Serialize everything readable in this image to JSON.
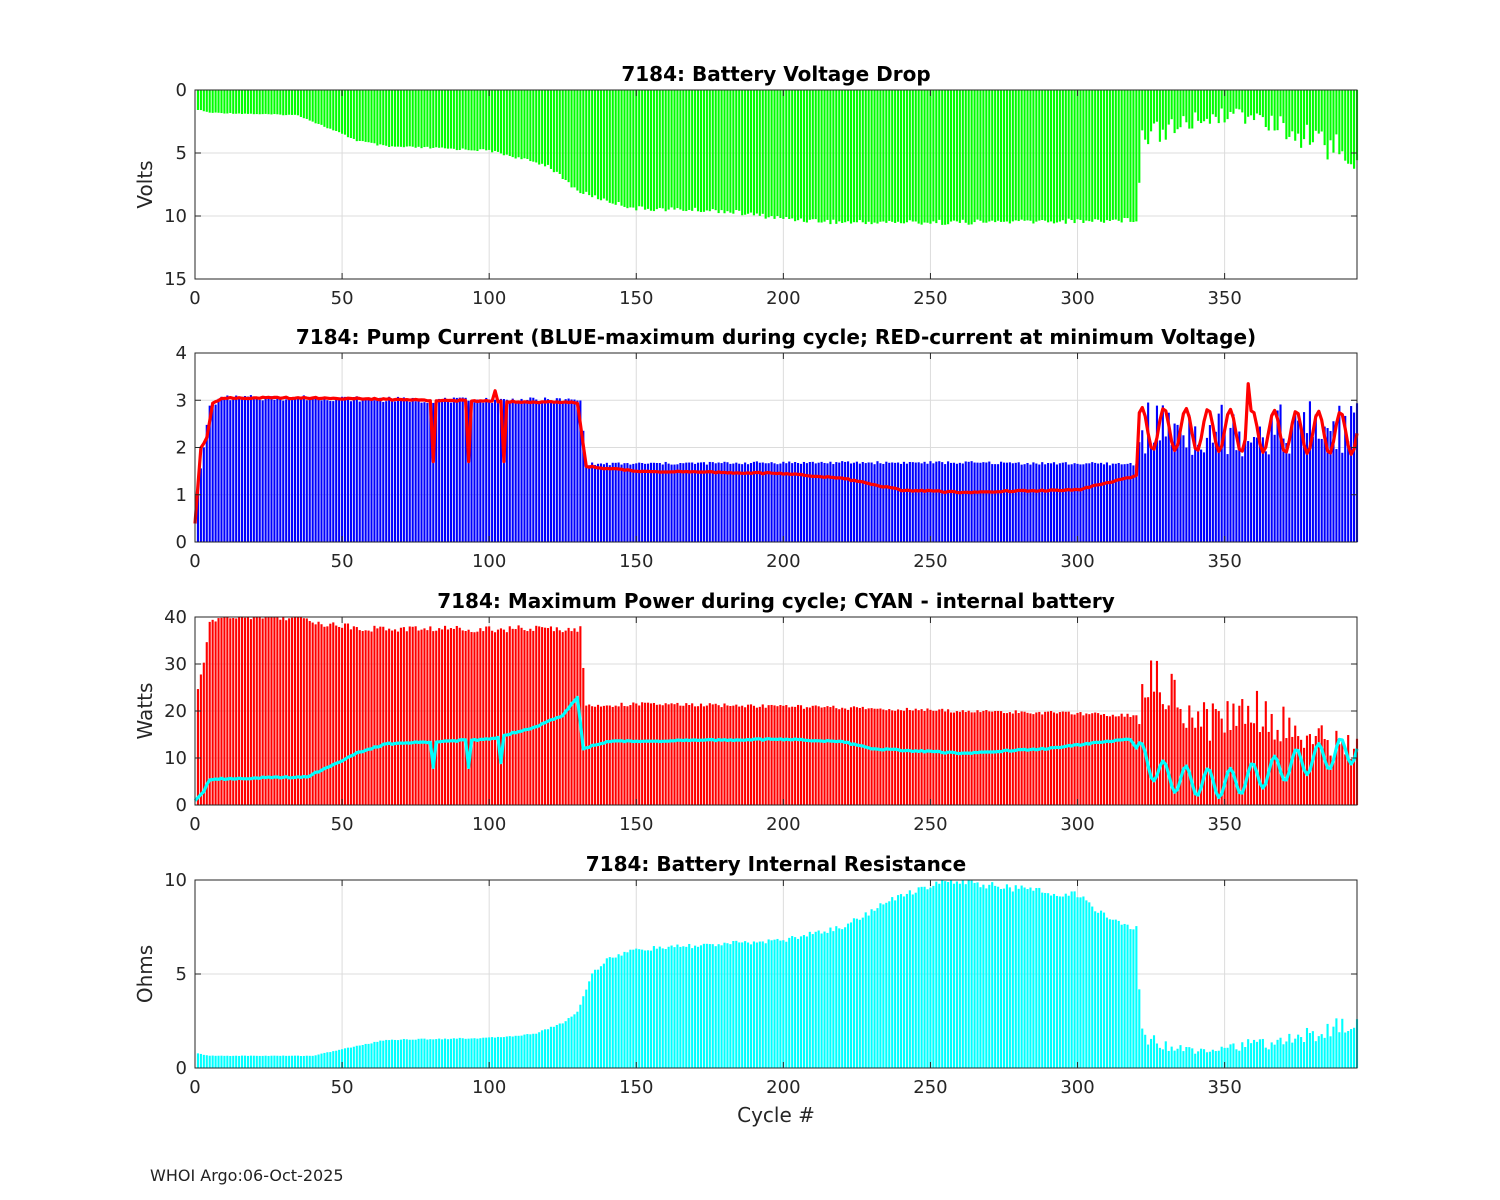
{
  "figure": {
    "footer": "WHOI Argo:06-Oct-2025",
    "xlabel": "Cycle #"
  },
  "chart_data": [
    {
      "type": "bar",
      "title": "7184: Battery Voltage Drop",
      "ylabel": "Volts",
      "xlabel": "",
      "xlim": [
        0,
        395
      ],
      "ylim": [
        0,
        15
      ],
      "y_reversed": true,
      "xticks": [
        0,
        50,
        100,
        150,
        200,
        250,
        300,
        350
      ],
      "yticks": [
        0,
        5,
        10,
        15
      ],
      "grid": true,
      "series": [
        {
          "name": "Voltage drop",
          "color": "#00ff00",
          "x_range": [
            1,
            395
          ],
          "profile": [
            [
              0,
              1.5
            ],
            [
              5,
              1.8
            ],
            [
              35,
              2.0
            ],
            [
              45,
              3.0
            ],
            [
              55,
              4.0
            ],
            [
              65,
              4.5
            ],
            [
              80,
              4.6
            ],
            [
              100,
              4.8
            ],
            [
              110,
              5.4
            ],
            [
              120,
              6.0
            ],
            [
              130,
              8.0
            ],
            [
              140,
              8.8
            ],
            [
              150,
              9.4
            ],
            [
              180,
              9.6
            ],
            [
              200,
              10.2
            ],
            [
              220,
              10.5
            ],
            [
              260,
              10.5
            ],
            [
              300,
              10.4
            ],
            [
              320,
              10.3
            ],
            [
              322,
              3.5
            ],
            [
              330,
              3.2
            ],
            [
              340,
              2.4
            ],
            [
              350,
              2.0
            ],
            [
              360,
              2.2
            ],
            [
              370,
              3.0
            ],
            [
              380,
              4.0
            ],
            [
              390,
              5.0
            ],
            [
              395,
              5.6
            ]
          ]
        }
      ]
    },
    {
      "type": "bar",
      "title": "7184: Pump Current (BLUE-maximum during cycle; RED-current at minimum Voltage)",
      "ylabel": "",
      "xlabel": "",
      "xlim": [
        0,
        395
      ],
      "ylim": [
        0,
        4
      ],
      "xticks": [
        0,
        50,
        100,
        150,
        200,
        250,
        300,
        350
      ],
      "yticks": [
        0,
        1,
        2,
        3,
        4
      ],
      "grid": true,
      "series": [
        {
          "name": "BLUE-maximum during cycle",
          "color": "#0000ff",
          "kind": "bar",
          "x_range": [
            1,
            395
          ],
          "profile": [
            [
              0,
              0.6
            ],
            [
              3,
              2.0
            ],
            [
              5,
              2.9
            ],
            [
              10,
              3.05
            ],
            [
              40,
              3.05
            ],
            [
              80,
              3.0
            ],
            [
              131,
              3.0
            ],
            [
              133,
              1.65
            ],
            [
              200,
              1.68
            ],
            [
              260,
              1.68
            ],
            [
              320,
              1.65
            ],
            [
              321,
              2.4
            ],
            [
              395,
              2.4
            ]
          ]
        },
        {
          "name": "RED-current at minimum Voltage",
          "color": "#ff0000",
          "kind": "line",
          "x_range": [
            0,
            395
          ],
          "profile": [
            [
              0,
              0.4
            ],
            [
              2,
              2.0
            ],
            [
              4,
              2.2
            ],
            [
              6,
              2.95
            ],
            [
              10,
              3.05
            ],
            [
              40,
              3.05
            ],
            [
              80,
              3.0
            ],
            [
              130,
              2.95
            ],
            [
              133,
              1.6
            ],
            [
              150,
              1.5
            ],
            [
              200,
              1.45
            ],
            [
              220,
              1.35
            ],
            [
              240,
              1.1
            ],
            [
              260,
              1.05
            ],
            [
              280,
              1.08
            ],
            [
              300,
              1.1
            ],
            [
              310,
              1.25
            ],
            [
              320,
              1.4
            ],
            [
              321,
              2.4
            ],
            [
              395,
              2.3
            ]
          ],
          "spikes": [
            [
              81,
              1.7
            ],
            [
              93,
              1.7
            ],
            [
              102,
              3.2
            ],
            [
              105,
              1.7
            ],
            [
              358,
              3.35
            ]
          ]
        }
      ]
    },
    {
      "type": "bar",
      "title": "7184: Maximum Power during cycle; CYAN - internal battery",
      "ylabel": "Watts",
      "xlabel": "",
      "xlim": [
        0,
        395
      ],
      "ylim": [
        0,
        40
      ],
      "xticks": [
        0,
        50,
        100,
        150,
        200,
        250,
        300,
        350
      ],
      "yticks": [
        0,
        10,
        20,
        30,
        40
      ],
      "grid": true,
      "series": [
        {
          "name": "Maximum Power",
          "color": "#ff0000",
          "kind": "bar",
          "x_range": [
            1,
            395
          ],
          "profile": [
            [
              0,
              22
            ],
            [
              3,
              30
            ],
            [
              5,
              39
            ],
            [
              10,
              40.5
            ],
            [
              35,
              40
            ],
            [
              45,
              38.5
            ],
            [
              60,
              37.5
            ],
            [
              131,
              37.5
            ],
            [
              133,
              21
            ],
            [
              150,
              21.5
            ],
            [
              200,
              21
            ],
            [
              260,
              20
            ],
            [
              300,
              19.5
            ],
            [
              320,
              19
            ],
            [
              322,
              27
            ],
            [
              330,
              24
            ],
            [
              345,
              18
            ],
            [
              360,
              21
            ],
            [
              375,
              15
            ],
            [
              395,
              12
            ]
          ]
        },
        {
          "name": "CYAN - internal battery",
          "color": "#00ffff",
          "kind": "line",
          "x_range": [
            0,
            395
          ],
          "profile": [
            [
              0,
              1
            ],
            [
              3,
              3
            ],
            [
              5,
              5.5
            ],
            [
              38,
              6
            ],
            [
              45,
              8
            ],
            [
              55,
              11
            ],
            [
              65,
              13
            ],
            [
              100,
              14
            ],
            [
              115,
              16.5
            ],
            [
              125,
              19
            ],
            [
              130,
              23
            ],
            [
              132,
              12
            ],
            [
              140,
              13.5
            ],
            [
              200,
              14
            ],
            [
              220,
              13.5
            ],
            [
              230,
              12
            ],
            [
              260,
              11
            ],
            [
              290,
              12
            ],
            [
              310,
              13.5
            ],
            [
              318,
              14
            ],
            [
              322,
              10
            ],
            [
              330,
              6
            ],
            [
              340,
              5
            ],
            [
              350,
              4.5
            ],
            [
              360,
              6
            ],
            [
              375,
              9
            ],
            [
              395,
              12
            ]
          ],
          "spikes": [
            [
              81,
              8
            ],
            [
              93,
              8
            ],
            [
              104,
              9
            ]
          ]
        }
      ]
    },
    {
      "type": "bar",
      "title": "7184: Battery Internal Resistance",
      "ylabel": "Ohms",
      "xlabel": "Cycle #",
      "xlim": [
        0,
        395
      ],
      "ylim": [
        0,
        10
      ],
      "xticks": [
        0,
        50,
        100,
        150,
        200,
        250,
        300,
        350
      ],
      "yticks": [
        0,
        5,
        10
      ],
      "grid": true,
      "series": [
        {
          "name": "Internal resistance",
          "color": "#00ffff",
          "x_range": [
            1,
            395
          ],
          "profile": [
            [
              0,
              0.8
            ],
            [
              5,
              0.65
            ],
            [
              40,
              0.65
            ],
            [
              50,
              1.0
            ],
            [
              65,
              1.5
            ],
            [
              100,
              1.6
            ],
            [
              115,
              1.8
            ],
            [
              125,
              2.4
            ],
            [
              130,
              3.0
            ],
            [
              135,
              5.0
            ],
            [
              140,
              5.8
            ],
            [
              150,
              6.3
            ],
            [
              200,
              6.8
            ],
            [
              220,
              7.5
            ],
            [
              240,
              9.2
            ],
            [
              255,
              10.0
            ],
            [
              265,
              9.8
            ],
            [
              300,
              9.2
            ],
            [
              310,
              8.0
            ],
            [
              320,
              7.4
            ],
            [
              322,
              1.8
            ],
            [
              330,
              1.2
            ],
            [
              340,
              1.0
            ],
            [
              370,
              1.4
            ],
            [
              395,
              2.4
            ]
          ]
        }
      ]
    }
  ]
}
